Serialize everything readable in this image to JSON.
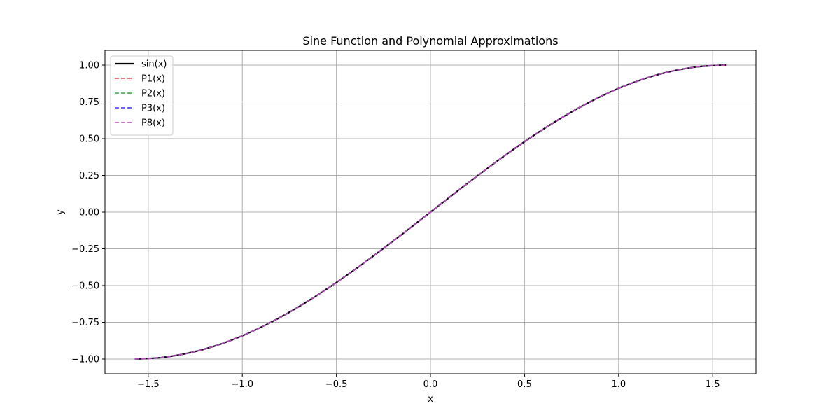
{
  "chart_data": {
    "type": "line",
    "title": "Sine Function and Polynomial Approximations",
    "xlabel": "x",
    "ylabel": "y",
    "xlim": [
      -1.73,
      1.73
    ],
    "ylim": [
      -1.1,
      1.1
    ],
    "xticks": [
      -1.5,
      -1.0,
      -0.5,
      0.0,
      0.5,
      1.0,
      1.5
    ],
    "xtick_labels": [
      "−1.5",
      "−1.0",
      "−0.5",
      "0.0",
      "0.5",
      "1.0",
      "1.5"
    ],
    "yticks": [
      -1.0,
      -0.75,
      -0.5,
      -0.25,
      0.0,
      0.25,
      0.5,
      0.75,
      1.0
    ],
    "ytick_labels": [
      "−1.00",
      "−0.75",
      "−0.50",
      "−0.25",
      "0.00",
      "0.25",
      "0.50",
      "0.75",
      "1.00"
    ],
    "grid": true,
    "legend_position": "upper-left",
    "x": [
      -1.5708,
      -1.4,
      -1.2,
      -1.0,
      -0.8,
      -0.6,
      -0.4,
      -0.2,
      0.0,
      0.2,
      0.4,
      0.6,
      0.8,
      1.0,
      1.2,
      1.4,
      1.5708
    ],
    "series": [
      {
        "name": "sin(x)",
        "color": "#000000",
        "style": "solid",
        "width": 2.2,
        "y": [
          -1.0,
          -0.9854,
          -0.932,
          -0.8415,
          -0.7174,
          -0.5646,
          -0.3894,
          -0.1987,
          0.0,
          0.1987,
          0.3894,
          0.5646,
          0.7174,
          0.8415,
          0.932,
          0.9854,
          1.0
        ]
      },
      {
        "name": "P1(x)",
        "color": "#e8474c",
        "style": "dashed",
        "width": 1.5,
        "y": [
          -1.0,
          -0.9854,
          -0.932,
          -0.8415,
          -0.7174,
          -0.5646,
          -0.3894,
          -0.1987,
          0.0,
          0.1987,
          0.3894,
          0.5646,
          0.7174,
          0.8415,
          0.932,
          0.9854,
          1.0
        ]
      },
      {
        "name": "P2(x)",
        "color": "#3aa63a",
        "style": "dashed",
        "width": 1.5,
        "y": [
          -1.0,
          -0.9854,
          -0.932,
          -0.8415,
          -0.7174,
          -0.5646,
          -0.3894,
          -0.1987,
          0.0,
          0.1987,
          0.3894,
          0.5646,
          0.7174,
          0.8415,
          0.932,
          0.9854,
          1.0
        ]
      },
      {
        "name": "P3(x)",
        "color": "#3333ee",
        "style": "dashed",
        "width": 1.5,
        "y": [
          -1.0,
          -0.9854,
          -0.932,
          -0.8415,
          -0.7174,
          -0.5646,
          -0.3894,
          -0.1987,
          0.0,
          0.1987,
          0.3894,
          0.5646,
          0.7174,
          0.8415,
          0.932,
          0.9854,
          1.0
        ]
      },
      {
        "name": "P8(x)",
        "color": "#cc44cc",
        "style": "dashed",
        "width": 1.5,
        "y": [
          -1.0,
          -0.9854,
          -0.932,
          -0.8415,
          -0.7174,
          -0.5646,
          -0.3894,
          -0.1987,
          0.0,
          0.1987,
          0.3894,
          0.5646,
          0.7174,
          0.8415,
          0.932,
          0.9854,
          1.0
        ]
      }
    ]
  }
}
